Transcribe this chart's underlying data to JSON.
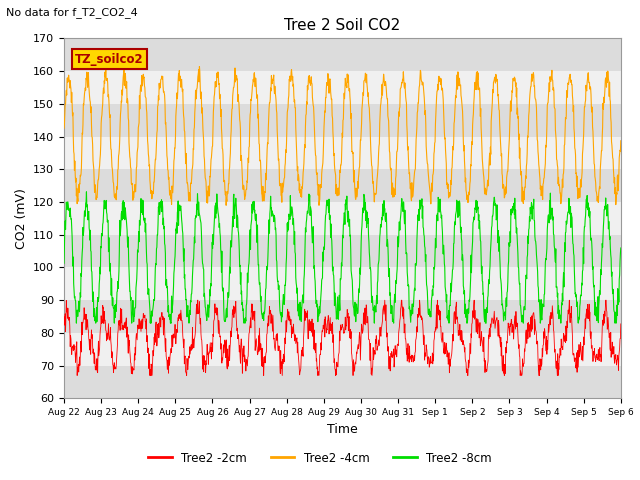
{
  "title": "Tree 2 Soil CO2",
  "top_left_text": "No data for f_T2_CO2_4",
  "ylabel": "CO2 (mV)",
  "xlabel": "Time",
  "ylim": [
    60,
    170
  ],
  "yticks": [
    60,
    70,
    80,
    90,
    100,
    110,
    120,
    130,
    140,
    150,
    160,
    170
  ],
  "x_labels": [
    "Aug 22",
    "Aug 23",
    "Aug 24",
    "Aug 25",
    "Aug 26",
    "Aug 27",
    "Aug 28",
    "Aug 29",
    "Aug 30",
    "Aug 31",
    "Sep 1",
    "Sep 2",
    "Sep 3",
    "Sep 4",
    "Sep 5",
    "Sep 6"
  ],
  "legend_box_label": "TZ_soilco2",
  "legend_box_facecolor": "#FFD700",
  "legend_box_edgecolor": "#AA0000",
  "series": [
    {
      "label": "Tree2 -2cm",
      "color": "#FF0000"
    },
    {
      "label": "Tree2 -4cm",
      "color": "#FFA500"
    },
    {
      "label": "Tree2 -8cm",
      "color": "#00DD00"
    }
  ],
  "band_colors": [
    "#DCDCDC",
    "#F0F0F0"
  ],
  "background_color": "#FFFFFF"
}
